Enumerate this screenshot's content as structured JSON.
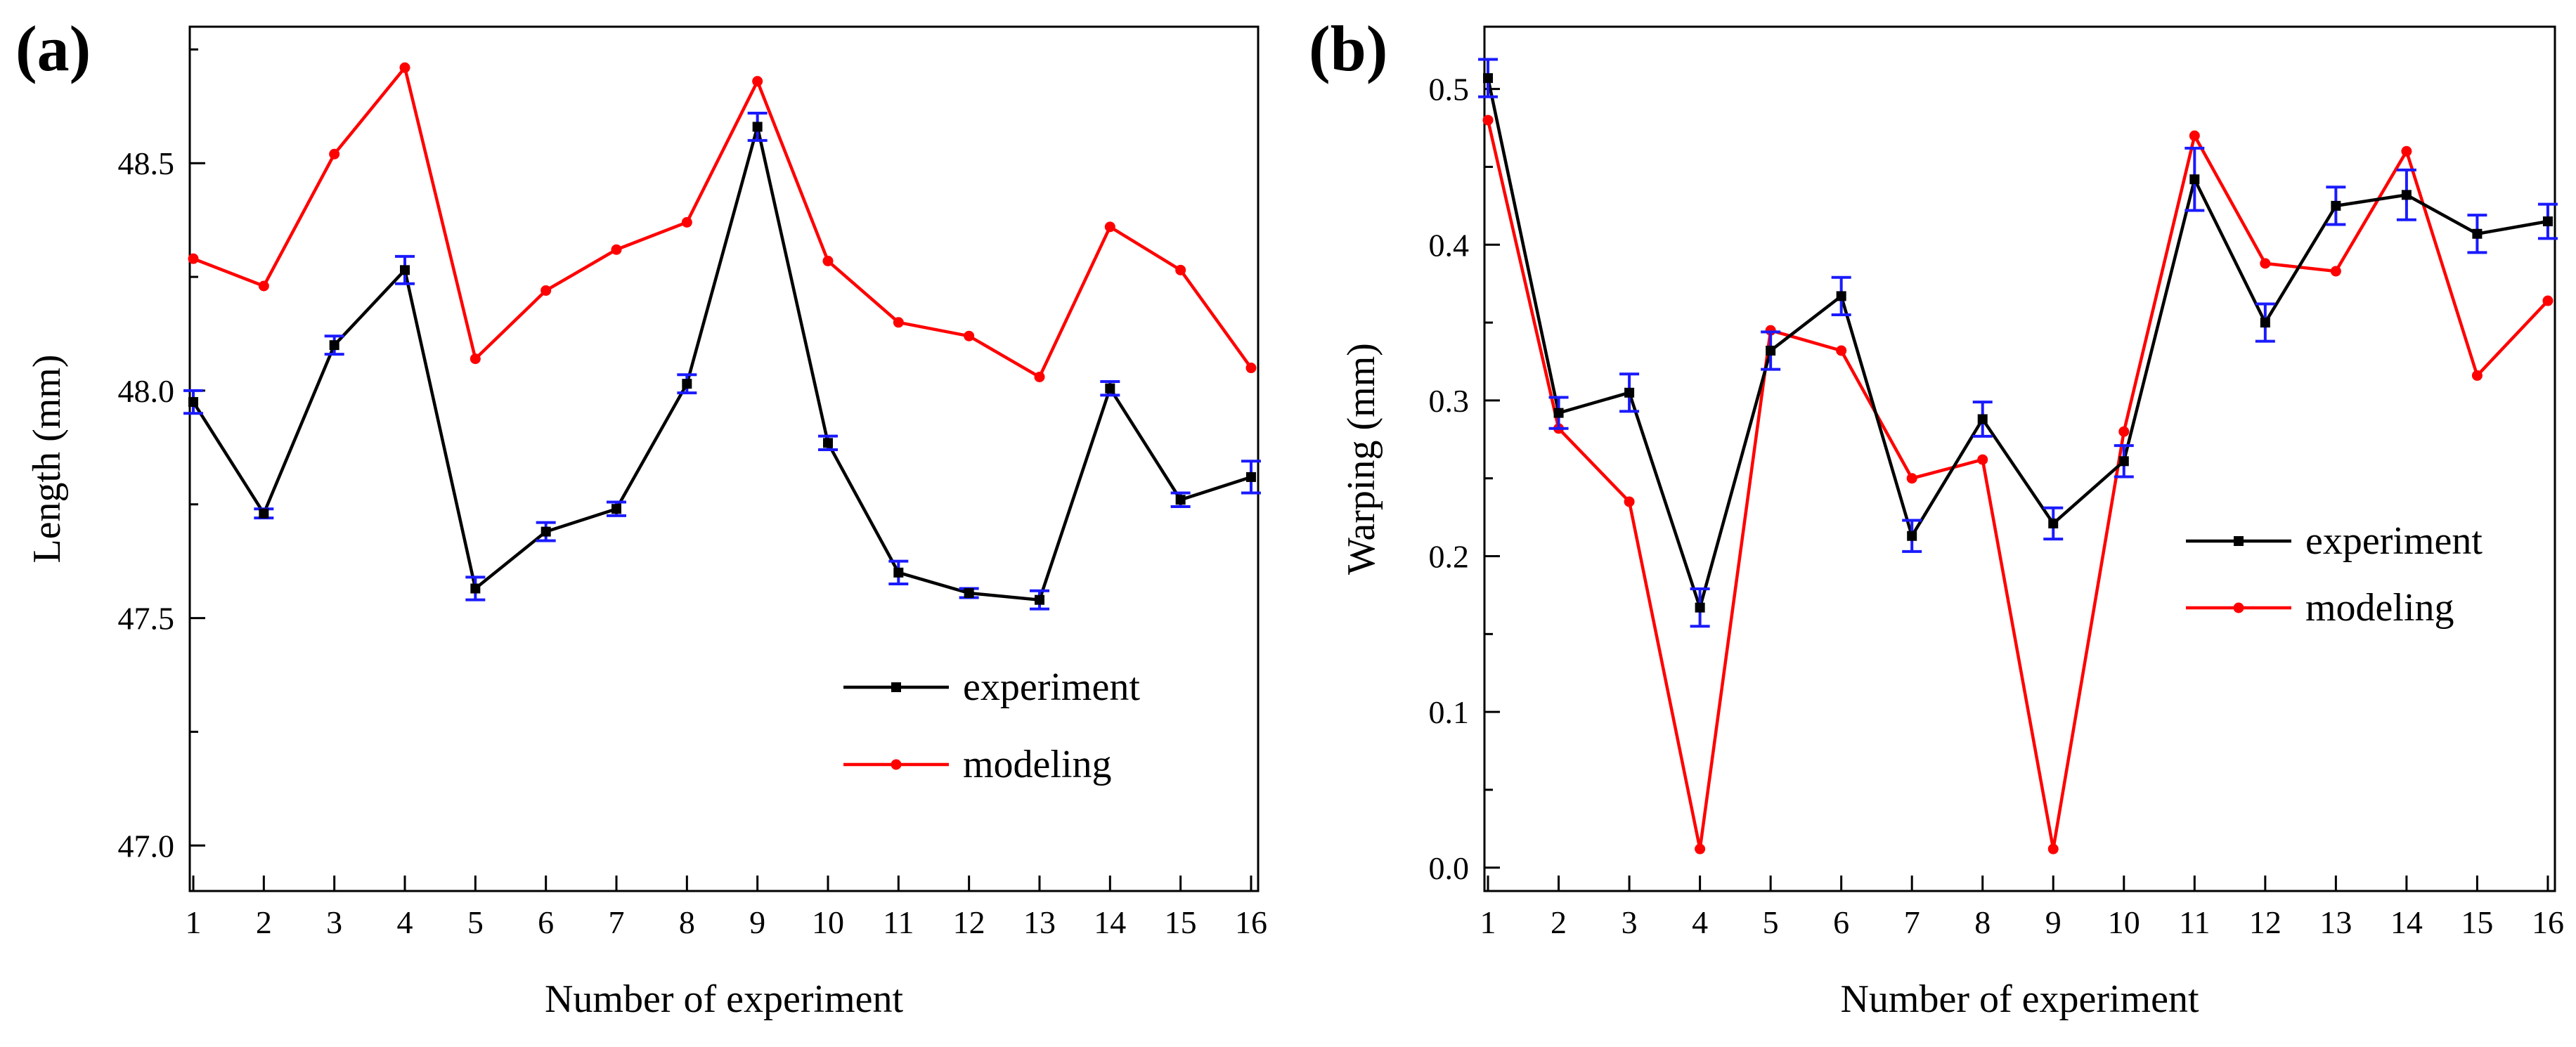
{
  "figure": {
    "panels": [
      "a",
      "b"
    ]
  },
  "chart_data": [
    {
      "panel_label": "(a)",
      "type": "line",
      "title": "",
      "xlabel": "Number of experiment",
      "ylabel": "Length (mm)",
      "categories": [
        "1",
        "2",
        "3",
        "4",
        "5",
        "6",
        "7",
        "8",
        "9",
        "10",
        "11",
        "12",
        "13",
        "14",
        "15",
        "16"
      ],
      "x": [
        1,
        2,
        3,
        4,
        5,
        6,
        7,
        8,
        9,
        10,
        11,
        12,
        13,
        14,
        15,
        16
      ],
      "xlim": [
        0.95,
        16.1
      ],
      "ylim": [
        46.9,
        48.8
      ],
      "yticks": [
        47.0,
        47.5,
        48.0,
        48.5
      ],
      "ytick_labels": [
        "47.0",
        "47.5",
        "48.0",
        "48.5"
      ],
      "legend_position": "lower-right",
      "series": [
        {
          "name": "experiment",
          "color": "#000000",
          "marker": "square",
          "values": [
            47.975,
            47.73,
            48.1,
            48.265,
            47.565,
            47.69,
            47.74,
            48.015,
            48.58,
            47.885,
            47.6,
            47.555,
            47.54,
            48.005,
            47.76,
            47.81
          ],
          "errors": [
            0.025,
            0.01,
            0.02,
            0.03,
            0.025,
            0.02,
            0.015,
            0.02,
            0.03,
            0.015,
            0.025,
            0.01,
            0.02,
            0.015,
            0.015,
            0.035
          ],
          "error_color": "#1a1aff"
        },
        {
          "name": "modeling",
          "color": "#ff0000",
          "marker": "circle",
          "values": [
            48.29,
            48.23,
            48.52,
            48.71,
            48.07,
            48.22,
            48.31,
            48.37,
            48.68,
            48.285,
            48.15,
            48.12,
            48.03,
            48.36,
            48.265,
            48.05
          ]
        }
      ]
    },
    {
      "panel_label": "(b)",
      "type": "line",
      "title": "",
      "xlabel": "Number of experiment",
      "ylabel": "Warping (mm)",
      "categories": [
        "1",
        "2",
        "3",
        "4",
        "5",
        "6",
        "7",
        "8",
        "9",
        "10",
        "11",
        "12",
        "13",
        "14",
        "15",
        "16"
      ],
      "x": [
        1,
        2,
        3,
        4,
        5,
        6,
        7,
        8,
        9,
        10,
        11,
        12,
        13,
        14,
        15,
        16
      ],
      "xlim": [
        0.95,
        16.1
      ],
      "ylim": [
        -0.015,
        0.54
      ],
      "yticks": [
        0.0,
        0.1,
        0.2,
        0.3,
        0.4,
        0.5
      ],
      "ytick_labels": [
        "0.0",
        "0.1",
        "0.2",
        "0.3",
        "0.4",
        "0.5"
      ],
      "legend_position": "center-right",
      "series": [
        {
          "name": "experiment",
          "color": "#000000",
          "marker": "square",
          "values": [
            0.507,
            0.292,
            0.305,
            0.167,
            0.332,
            0.367,
            0.213,
            0.288,
            0.221,
            0.261,
            0.442,
            0.35,
            0.425,
            0.432,
            0.407,
            0.415
          ],
          "errors": [
            0.012,
            0.01,
            0.012,
            0.012,
            0.012,
            0.012,
            0.01,
            0.011,
            0.01,
            0.01,
            0.02,
            0.012,
            0.012,
            0.016,
            0.012,
            0.011
          ],
          "error_color": "#1a1aff"
        },
        {
          "name": "modeling",
          "color": "#ff0000",
          "marker": "circle",
          "values": [
            0.48,
            0.282,
            0.235,
            0.012,
            0.345,
            0.332,
            0.25,
            0.262,
            0.012,
            0.28,
            0.47,
            0.388,
            0.383,
            0.46,
            0.316,
            0.364
          ]
        }
      ]
    }
  ]
}
